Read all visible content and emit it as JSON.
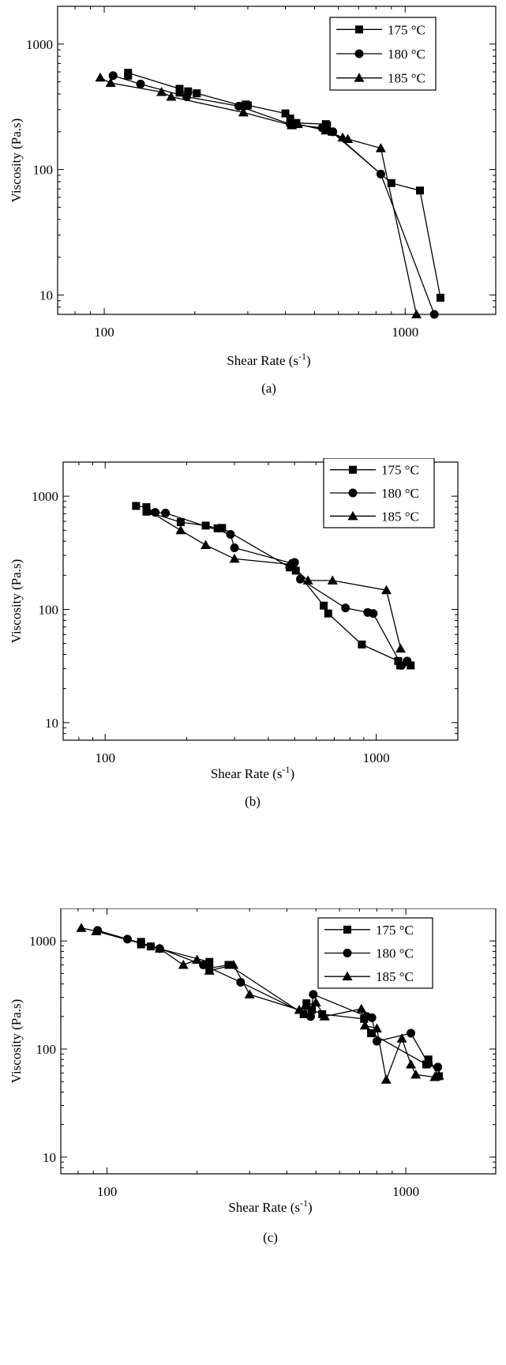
{
  "figure": {
    "charts": [
      {
        "id": "a",
        "caption": "(a)"
      },
      {
        "id": "b",
        "caption": "(b)"
      },
      {
        "id": "c",
        "caption": "(c)"
      }
    ]
  },
  "chart_data": [
    {
      "type": "line",
      "caption": "(a)",
      "xlabel": "Shear Rate (s",
      "xlabel_sup": "-1",
      "xlabel_end": ")",
      "ylabel": "Viscosity (Pa.s)",
      "xscale": "log",
      "yscale": "log",
      "xlim": [
        70,
        2000
      ],
      "ylim": [
        7,
        2000
      ],
      "xticks": [
        100,
        1000
      ],
      "xtick_labels": [
        "100",
        "1000"
      ],
      "yticks": [
        10,
        100,
        1000
      ],
      "ytick_labels": [
        "10",
        "100",
        "1000"
      ],
      "grid": false,
      "legend_position": "top-right",
      "series": [
        {
          "name": "175 °C",
          "marker": "square",
          "x": [
            120,
            120,
            178,
            178,
            190,
            203,
            290,
            295,
            300,
            400,
            415,
            435,
            545,
            550,
            570,
            900,
            1120,
            1310
          ],
          "y": [
            560,
            590,
            440,
            410,
            420,
            405,
            320,
            330,
            325,
            280,
            255,
            235,
            230,
            225,
            200,
            78,
            68,
            9.5
          ]
        },
        {
          "name": "180 °C",
          "marker": "circle",
          "x": [
            107,
            132,
            188,
            280,
            415,
            530,
            575,
            830,
            1250
          ],
          "y": [
            560,
            480,
            380,
            320,
            230,
            215,
            200,
            92,
            7
          ]
        },
        {
          "name": "185 °C",
          "marker": "triangle",
          "x": [
            97,
            105,
            155,
            167,
            290,
            420,
            440,
            545,
            620,
            645,
            830,
            1090
          ],
          "y": [
            540,
            490,
            415,
            380,
            285,
            225,
            230,
            205,
            180,
            175,
            148,
            7
          ]
        }
      ]
    },
    {
      "type": "line",
      "caption": "(b)",
      "xlabel": "Shear Rate (s",
      "xlabel_sup": "-1",
      "xlabel_end": ")",
      "ylabel": "Viscosity (Pa.s)",
      "xscale": "log",
      "yscale": "log",
      "xlim": [
        70,
        2000
      ],
      "ylim": [
        7,
        2000
      ],
      "xticks": [
        100,
        1000
      ],
      "xtick_labels": [
        "100",
        "1000"
      ],
      "yticks": [
        10,
        100,
        1000
      ],
      "ytick_labels": [
        "10",
        "100",
        "1000"
      ],
      "grid": false,
      "legend_position": "top-right",
      "series": [
        {
          "name": "175 °C",
          "marker": "square",
          "x": [
            130,
            142,
            142,
            190,
            235,
            260,
            270,
            480,
            505,
            640,
            665,
            885,
            1205,
            1225,
            1340
          ],
          "y": [
            820,
            800,
            730,
            590,
            550,
            520,
            525,
            235,
            220,
            108,
            92,
            49,
            35,
            32,
            32
          ]
        },
        {
          "name": "180 °C",
          "marker": "circle",
          "x": [
            153,
            167,
            290,
            300,
            490,
            500,
            525,
            770,
            930,
            975,
            1240,
            1300
          ],
          "y": [
            720,
            710,
            460,
            350,
            255,
            260,
            185,
            103,
            94,
            92,
            32,
            35
          ]
        },
        {
          "name": "185 °C",
          "marker": "triangle",
          "x": [
            145,
            190,
            235,
            300,
            480,
            560,
            690,
            1090,
            1230
          ],
          "y": [
            740,
            500,
            370,
            280,
            250,
            180,
            180,
            148,
            45
          ]
        }
      ]
    },
    {
      "type": "line",
      "caption": "(c)",
      "xlabel": "Shear Rate (s",
      "xlabel_sup": "-1",
      "xlabel_end": ")",
      "ylabel": "Viscosity (Pa.s)",
      "xscale": "log",
      "yscale": "log",
      "xlim": [
        70,
        2000
      ],
      "ylim": [
        7,
        2000
      ],
      "xticks": [
        100,
        1000
      ],
      "xtick_labels": [
        "100",
        "1000"
      ],
      "yticks": [
        10,
        100,
        1000
      ],
      "ytick_labels": [
        "10",
        "100",
        "1000"
      ],
      "grid": false,
      "legend_position": "top-right",
      "series": [
        {
          "name": "175 °C",
          "marker": "square",
          "x": [
            130,
            130,
            140,
            220,
            220,
            255,
            455,
            465,
            485,
            525,
            725,
            765,
            1170,
            1190,
            1290
          ],
          "y": [
            980,
            930,
            890,
            640,
            560,
            600,
            210,
            265,
            230,
            210,
            190,
            140,
            72,
            80,
            56
          ]
        },
        {
          "name": "180 °C",
          "marker": "circle",
          "x": [
            93,
            117,
            150,
            210,
            280,
            480,
            490,
            740,
            770,
            800,
            1040,
            1190,
            1280
          ],
          "y": [
            1250,
            1040,
            850,
            600,
            415,
            200,
            320,
            200,
            195,
            118,
            140,
            73,
            68
          ]
        },
        {
          "name": "185 °C",
          "marker": "triangle",
          "x": [
            82,
            92,
            150,
            180,
            200,
            220,
            265,
            300,
            440,
            460,
            500,
            535,
            710,
            730,
            800,
            860,
            970,
            1040,
            1080,
            1250,
            1290
          ],
          "y": [
            1320,
            1230,
            850,
            600,
            670,
            530,
            600,
            320,
            230,
            250,
            270,
            200,
            235,
            165,
            155,
            52,
            125,
            72,
            58,
            55,
            57
          ]
        }
      ]
    }
  ]
}
